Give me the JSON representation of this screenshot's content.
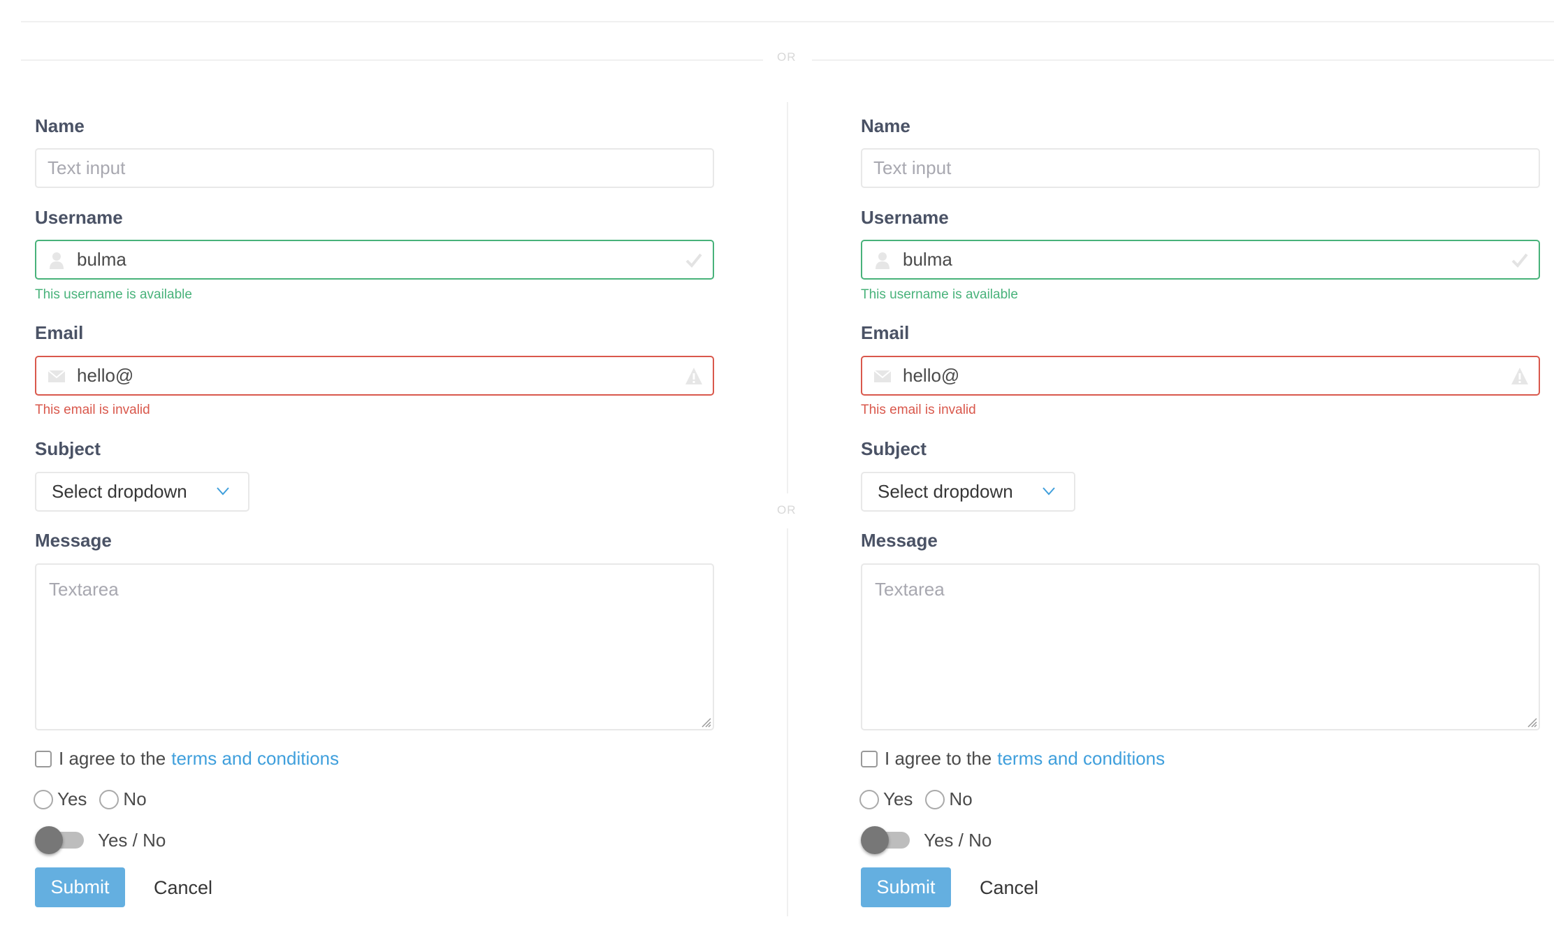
{
  "divider_label": "OR",
  "colors": {
    "success": "#48b27a",
    "danger": "#d9584c",
    "primary": "#64afe0",
    "link": "#3f9fdc"
  },
  "forms": [
    {
      "name_label": "Name",
      "name_placeholder": "Text input",
      "username_label": "Username",
      "username_value": "bulma",
      "username_help": "This username is available",
      "email_label": "Email",
      "email_value": "hello@",
      "email_help": "This email is invalid",
      "subject_label": "Subject",
      "subject_selected": "Select dropdown",
      "message_label": "Message",
      "message_placeholder": "Textarea",
      "agree_text": "I agree to the",
      "terms_link": "terms and conditions",
      "radio_yes": "Yes",
      "radio_no": "No",
      "toggle_label": "Yes / No",
      "submit_label": "Submit",
      "cancel_label": "Cancel"
    },
    {
      "name_label": "Name",
      "name_placeholder": "Text input",
      "username_label": "Username",
      "username_value": "bulma",
      "username_help": "This username is available",
      "email_label": "Email",
      "email_value": "hello@",
      "email_help": "This email is invalid",
      "subject_label": "Subject",
      "subject_selected": "Select dropdown",
      "message_label": "Message",
      "message_placeholder": "Textarea",
      "agree_text": "I agree to the",
      "terms_link": "terms and conditions",
      "radio_yes": "Yes",
      "radio_no": "No",
      "toggle_label": "Yes / No",
      "submit_label": "Submit",
      "cancel_label": "Cancel"
    }
  ]
}
